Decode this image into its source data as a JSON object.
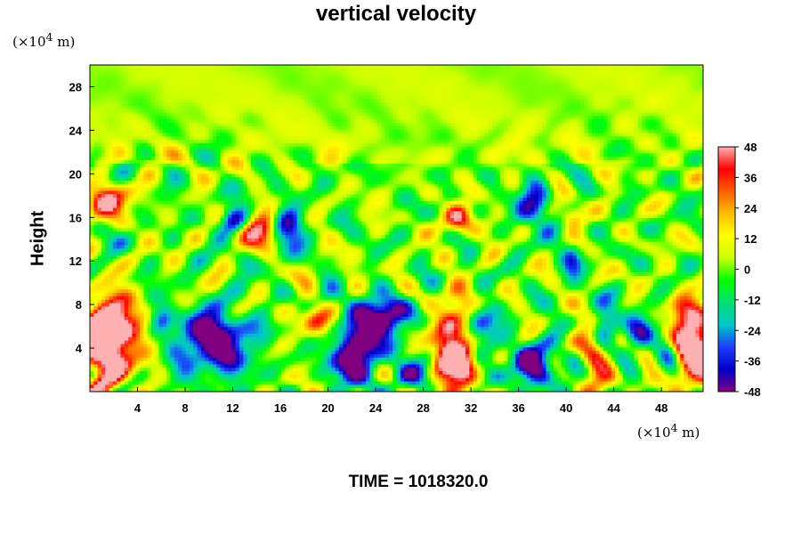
{
  "chart_data": {
    "type": "heatmap",
    "title": "vertical velocity",
    "ylabel": "Height",
    "x_unit_prefix": "(×10",
    "x_unit_exp": "4",
    "x_unit_suffix": " m)",
    "y_unit_prefix": "(×10",
    "y_unit_exp": "4",
    "y_unit_suffix": " m)",
    "xlim": [
      0,
      51.5
    ],
    "ylim": [
      0,
      30
    ],
    "x_ticks": [
      "4",
      "8",
      "12",
      "16",
      "20",
      "24",
      "28",
      "32",
      "36",
      "40",
      "44",
      "48"
    ],
    "y_ticks": [
      "4",
      "8",
      "12",
      "16",
      "20",
      "24",
      "28"
    ],
    "colorbar": {
      "range": [
        -48,
        48
      ],
      "ticks": [
        "48",
        "36",
        "24",
        "12",
        "0",
        "-12",
        "-24",
        "-36",
        "-48"
      ]
    },
    "footer": "TIME = 1018320.0",
    "colormap": [
      "#800080",
      "#0000c8",
      "#1e3cff",
      "#00c8c8",
      "#00e070",
      "#00ff00",
      "#c8ff00",
      "#ffff00",
      "#ffc000",
      "#ff6000",
      "#ff0000",
      "#ffb0b0"
    ]
  }
}
